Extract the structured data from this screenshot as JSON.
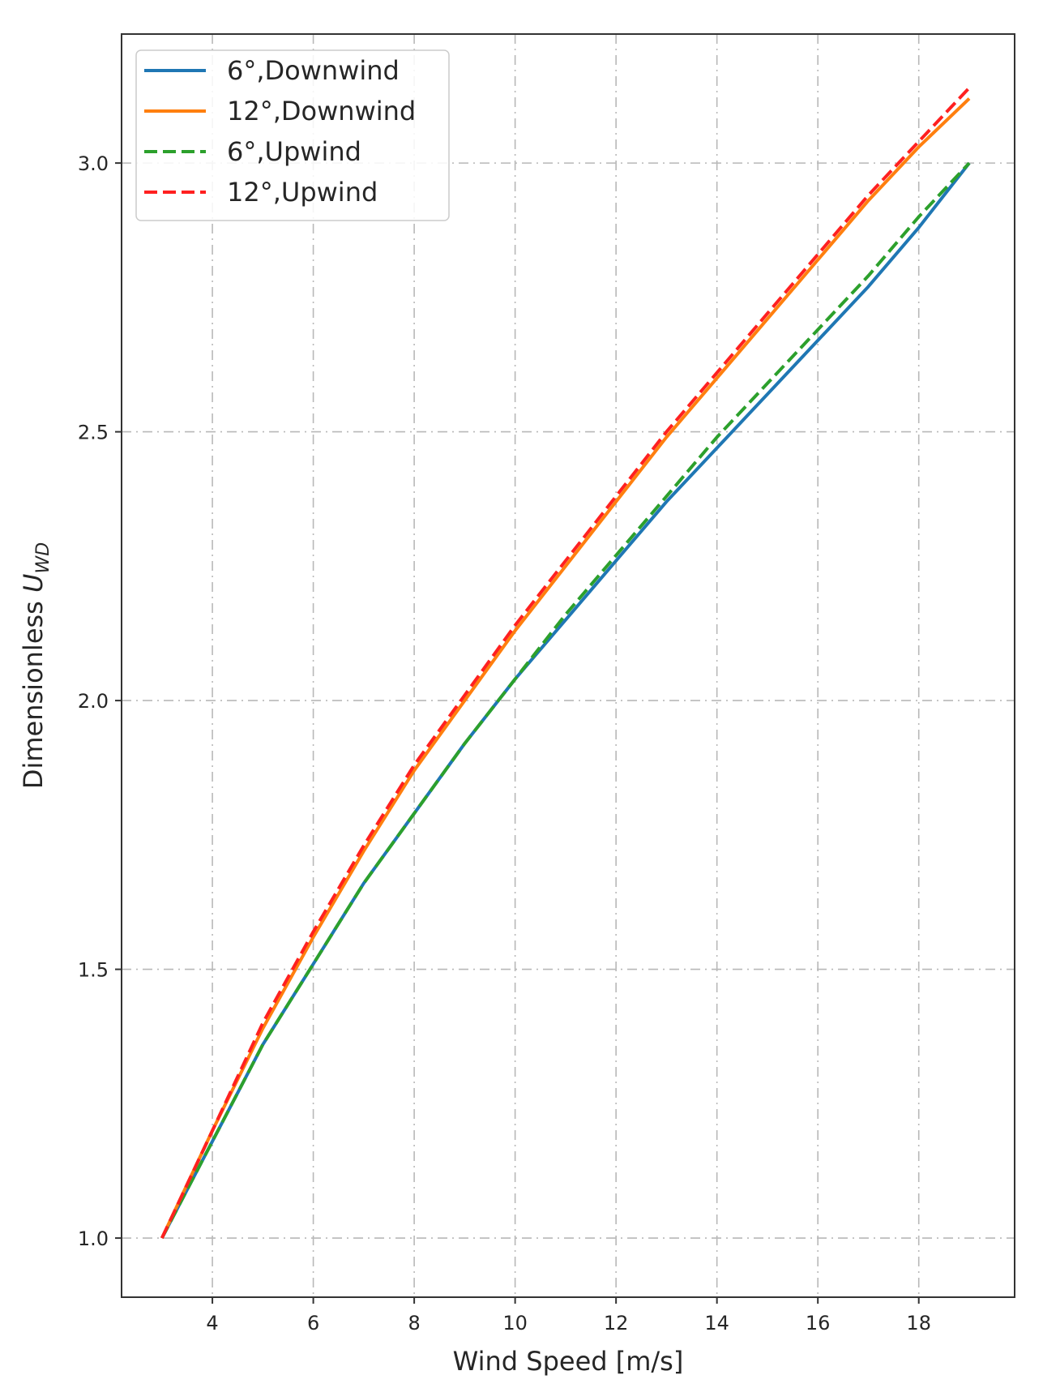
{
  "chart_data": {
    "type": "line",
    "title": "",
    "xlabel": "Wind Speed [m/s]",
    "ylabel": "Dimensionless ",
    "ylabel_symbol": "U",
    "ylabel_subscript": "WD",
    "xlim": [
      2.2,
      19.9
    ],
    "ylim": [
      0.89,
      3.24
    ],
    "xticks": [
      4,
      6,
      8,
      10,
      12,
      14,
      16,
      18
    ],
    "yticks": [
      1.0,
      1.5,
      2.0,
      2.5,
      3.0
    ],
    "xtick_labels": [
      "4",
      "6",
      "8",
      "10",
      "12",
      "14",
      "16",
      "18"
    ],
    "ytick_labels": [
      "1.0",
      "1.5",
      "2.0",
      "2.5",
      "3.0"
    ],
    "grid": true,
    "legend_position": "top-left",
    "x": [
      3,
      4,
      5,
      6,
      7,
      8,
      9,
      10,
      11,
      12,
      13,
      14,
      15,
      16,
      17,
      18,
      19
    ],
    "series": [
      {
        "name": "6°,Downwind",
        "color": "#1f77b4",
        "style": "solid",
        "values": [
          1.0,
          1.18,
          1.36,
          1.51,
          1.66,
          1.79,
          1.92,
          2.04,
          2.15,
          2.26,
          2.37,
          2.47,
          2.57,
          2.67,
          2.77,
          2.88,
          3.0
        ]
      },
      {
        "name": "12°,Downwind",
        "color": "#ff7f0e",
        "style": "solid",
        "values": [
          1.0,
          1.2,
          1.39,
          1.56,
          1.72,
          1.87,
          2.0,
          2.13,
          2.25,
          2.37,
          2.49,
          2.6,
          2.71,
          2.82,
          2.93,
          3.03,
          3.12
        ]
      },
      {
        "name": "6°,Upwind",
        "color": "#2ca02c",
        "style": "dashed",
        "values": [
          1.0,
          1.18,
          1.36,
          1.51,
          1.66,
          1.79,
          1.92,
          2.04,
          2.16,
          2.27,
          2.38,
          2.49,
          2.59,
          2.69,
          2.79,
          2.9,
          3.0
        ]
      },
      {
        "name": "12°,Upwind",
        "color": "#ff2020",
        "style": "dashed",
        "values": [
          1.0,
          1.2,
          1.4,
          1.57,
          1.73,
          1.88,
          2.01,
          2.14,
          2.26,
          2.38,
          2.5,
          2.61,
          2.72,
          2.83,
          2.94,
          3.04,
          3.14
        ]
      }
    ]
  }
}
